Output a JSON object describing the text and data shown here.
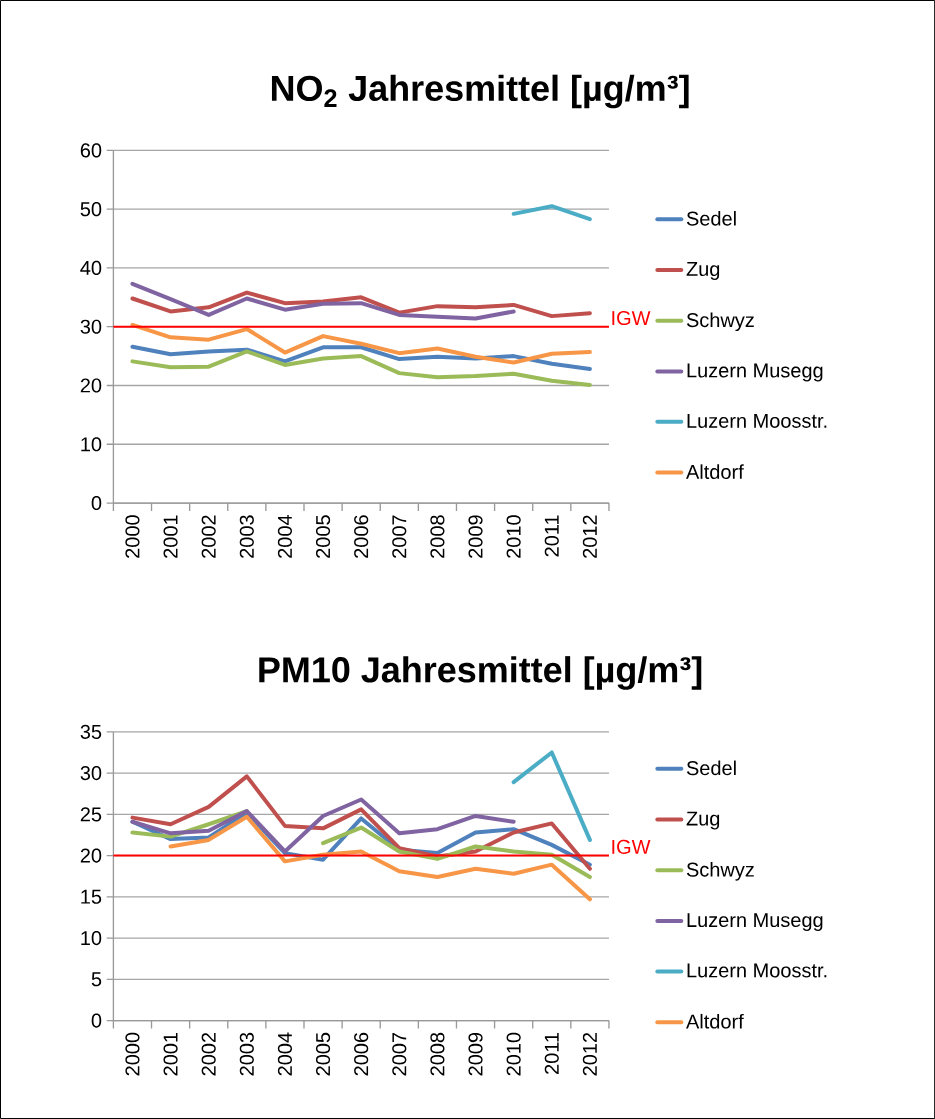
{
  "chart_data": [
    {
      "type": "line",
      "title": "NO$_{2}$ Jahresmittel [µg/m³]",
      "categories": [
        "2000",
        "2001",
        "2002",
        "2003",
        "2004",
        "2005",
        "2006",
        "2007",
        "2008",
        "2009",
        "2010",
        "2011",
        "2012"
      ],
      "series": [
        {
          "name": "Sedel",
          "color": "#4f81bd",
          "values": [
            26.6,
            25.3,
            25.8,
            26.1,
            24.1,
            26.5,
            26.5,
            24.5,
            24.9,
            24.6,
            25.0,
            23.7,
            22.8
          ]
        },
        {
          "name": "Zug",
          "color": "#c0504d",
          "values": [
            34.8,
            32.6,
            33.3,
            35.8,
            34.0,
            34.3,
            35.0,
            32.4,
            33.5,
            33.3,
            33.7,
            31.8,
            32.3
          ]
        },
        {
          "name": "Schwyz",
          "color": "#9bbb59",
          "values": [
            24.1,
            23.1,
            23.2,
            25.8,
            23.5,
            24.6,
            25.0,
            22.1,
            21.4,
            21.6,
            22.0,
            20.8,
            20.1
          ]
        },
        {
          "name": "Luzern Musegg",
          "color": "#8064a2",
          "values": [
            37.3,
            34.7,
            32.0,
            34.8,
            32.9,
            33.9,
            34.0,
            32.0,
            31.7,
            31.4,
            32.6,
            null,
            null
          ]
        },
        {
          "name": "Luzern Moosstr.",
          "color": "#4bacc6",
          "values": [
            null,
            null,
            null,
            null,
            null,
            null,
            null,
            null,
            null,
            null,
            49.2,
            50.5,
            48.3
          ]
        },
        {
          "name": "Altdorf",
          "color": "#f79646",
          "values": [
            30.3,
            28.2,
            27.8,
            29.6,
            25.6,
            28.4,
            27.1,
            25.5,
            26.3,
            24.9,
            23.9,
            25.4,
            25.7
          ]
        }
      ],
      "ylim": [
        0,
        60
      ],
      "yticks": [
        0,
        10,
        20,
        30,
        40,
        50,
        60
      ],
      "grid": "y",
      "legend": "right",
      "line_style": "solid",
      "ref_lines": [
        {
          "axis": "y",
          "value": 30,
          "label": "IGW",
          "color": "#ff0000"
        }
      ]
    },
    {
      "type": "line",
      "title": "PM10 Jahresmittel [µg/m³]",
      "categories": [
        "2000",
        "2001",
        "2002",
        "2003",
        "2004",
        "2005",
        "2006",
        "2007",
        "2008",
        "2009",
        "2010",
        "2011",
        "2012"
      ],
      "series": [
        {
          "name": "Sedel",
          "color": "#4f81bd",
          "values": [
            24.1,
            22.0,
            22.2,
            25.2,
            20.3,
            19.5,
            24.5,
            20.7,
            20.3,
            22.8,
            23.2,
            21.3,
            18.9
          ]
        },
        {
          "name": "Zug",
          "color": "#c0504d",
          "values": [
            24.6,
            23.8,
            25.9,
            29.6,
            23.6,
            23.3,
            25.6,
            20.9,
            19.9,
            20.5,
            22.8,
            23.9,
            18.4
          ]
        },
        {
          "name": "Schwyz",
          "color": "#9bbb59",
          "values": [
            22.8,
            22.3,
            23.8,
            25.4,
            null,
            21.5,
            23.4,
            20.5,
            19.6,
            21.1,
            20.5,
            20.1,
            17.4
          ]
        },
        {
          "name": "Luzern Musegg",
          "color": "#8064a2",
          "values": [
            24.1,
            22.7,
            23.0,
            25.4,
            20.5,
            24.8,
            26.8,
            22.7,
            23.2,
            24.8,
            24.1,
            null,
            null
          ]
        },
        {
          "name": "Luzern Moosstr.",
          "color": "#4bacc6",
          "values": [
            null,
            null,
            null,
            null,
            null,
            null,
            null,
            null,
            null,
            null,
            28.9,
            32.5,
            21.9
          ]
        },
        {
          "name": "Altdorf",
          "color": "#f79646",
          "values": [
            null,
            21.1,
            21.9,
            24.7,
            19.3,
            20.1,
            20.5,
            18.1,
            17.4,
            18.4,
            17.8,
            18.9,
            14.7
          ]
        }
      ],
      "ylim": [
        0,
        35
      ],
      "yticks": [
        0,
        5,
        10,
        15,
        20,
        25,
        30,
        35
      ],
      "grid": "y",
      "legend": "right",
      "line_style": "solid",
      "ref_lines": [
        {
          "axis": "y",
          "value": 20,
          "label": "IGW",
          "color": "#ff0000"
        }
      ]
    }
  ]
}
